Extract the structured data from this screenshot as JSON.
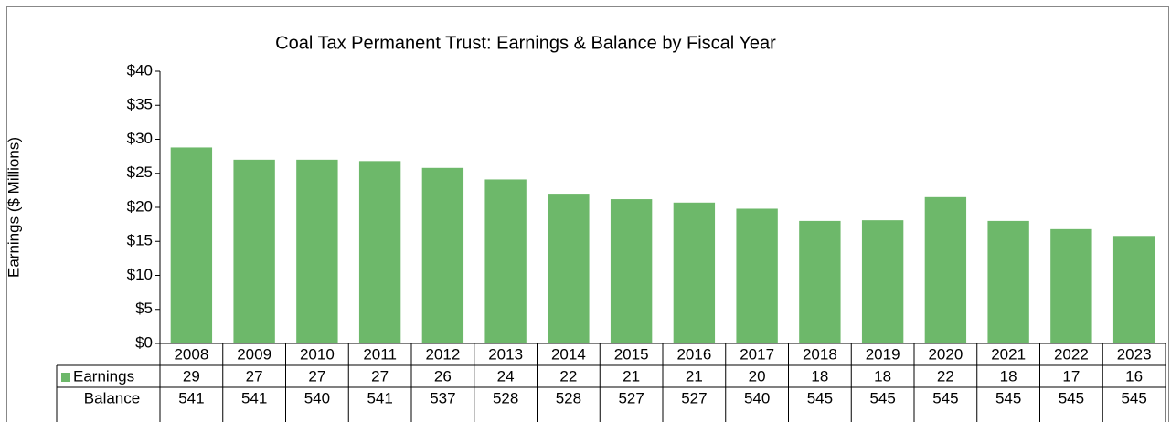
{
  "chart_data": {
    "type": "bar",
    "title": "Coal Tax Permanent Trust: Earnings & Balance by Fiscal Year",
    "ylabel": "Earnings ($ Millions)",
    "categories": [
      "2008",
      "2009",
      "2010",
      "2011",
      "2012",
      "2013",
      "2014",
      "2015",
      "2016",
      "2017",
      "2018",
      "2019",
      "2020",
      "2021",
      "2022",
      "2023"
    ],
    "series": [
      {
        "name": "Earnings",
        "color": "#6db86a",
        "values": [
          28.8,
          27.0,
          27.0,
          26.8,
          25.8,
          24.1,
          22.0,
          21.2,
          20.7,
          19.8,
          18.0,
          18.1,
          21.5,
          18.0,
          16.8,
          15.8
        ],
        "value_labels": [
          "29",
          "27",
          "27",
          "27",
          "26",
          "24",
          "22",
          "21",
          "21",
          "20",
          "18",
          "18",
          "22",
          "18",
          "17",
          "16"
        ]
      },
      {
        "name": "Balance",
        "values": [
          541,
          541,
          540,
          541,
          537,
          528,
          528,
          527,
          527,
          540,
          545,
          545,
          545,
          545,
          545,
          545
        ]
      }
    ],
    "ylim": [
      0,
      40
    ],
    "yticks": [
      {
        "value": 0,
        "label": "$0"
      },
      {
        "value": 5,
        "label": "$5"
      },
      {
        "value": 10,
        "label": "$10"
      },
      {
        "value": 15,
        "label": "$15"
      },
      {
        "value": 20,
        "label": "$20"
      },
      {
        "value": 25,
        "label": "$25"
      },
      {
        "value": 30,
        "label": "$30"
      },
      {
        "value": 35,
        "label": "$35"
      },
      {
        "value": 40,
        "label": "$40"
      }
    ],
    "grid": false
  }
}
